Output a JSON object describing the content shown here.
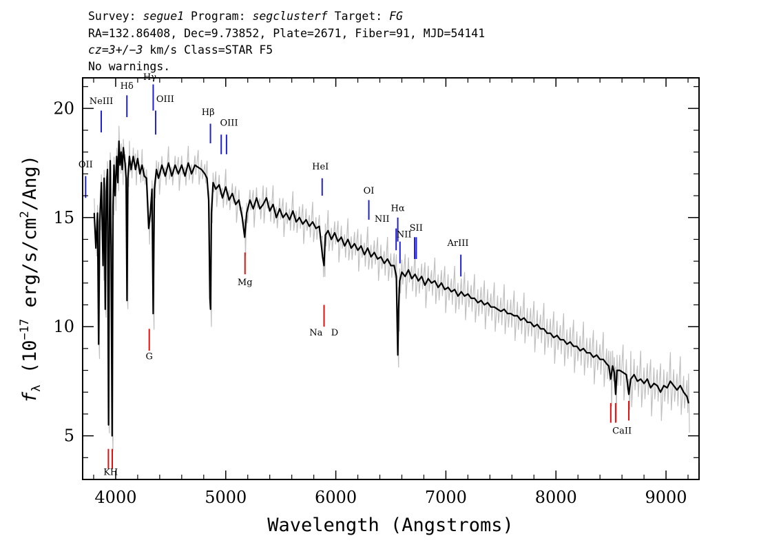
{
  "header": {
    "line1": {
      "survey_label": "Survey: ",
      "survey": "segue1",
      "program_label": " Program: ",
      "program": "segclusterf",
      "target_label": " Target: ",
      "target": "FG"
    },
    "line2": "RA=132.86408, Dec=9.73852, Plate=2671, Fiber=91, MJD=54141",
    "line3": {
      "z": "cz=3+/−3",
      "rest": " km/s Class=STAR F5"
    },
    "line4": "No warnings."
  },
  "colors": {
    "spectrum": "#000000",
    "error_band": "#c0c0c0",
    "emission": "#1f1fd6",
    "absorption": "#e01010",
    "frame": "#000000"
  },
  "chart_data": {
    "type": "line",
    "xlabel": "Wavelength (Angstroms)",
    "ylabel": "fλ (10⁻¹⁷ erg/s/cm²/Ang)",
    "ylabel_parts": {
      "f": "f",
      "sub": "λ",
      "pre": " (10",
      "exp": "−17",
      "mid": " erg/s/cm",
      "exp2": "2",
      "post": "/Ang)"
    },
    "xlim": [
      3700,
      9300
    ],
    "ylim": [
      3,
      21.4
    ],
    "x_ticks": [
      4000,
      5000,
      6000,
      7000,
      8000,
      9000
    ],
    "y_ticks": [
      5,
      10,
      15,
      20
    ],
    "x_tick_labels": [
      "4000",
      "5000",
      "6000",
      "7000",
      "8000",
      "9000"
    ],
    "y_tick_labels": [
      "5",
      "10",
      "15",
      "20"
    ],
    "grid": false,
    "series": [
      {
        "points": [
          [
            3805,
            15.2
          ],
          [
            3820,
            13.6
          ],
          [
            3835,
            15.2
          ],
          [
            3845,
            9.2
          ],
          [
            3855,
            14.8
          ],
          [
            3870,
            16.6
          ],
          [
            3885,
            12.8
          ],
          [
            3895,
            16.8
          ],
          [
            3905,
            10.8
          ],
          [
            3915,
            16.2
          ],
          [
            3925,
            17.2
          ],
          [
            3935,
            5.5
          ],
          [
            3943,
            14.5
          ],
          [
            3950,
            17.6
          ],
          [
            3958,
            14.0
          ],
          [
            3968,
            5.0
          ],
          [
            3976,
            15.5
          ],
          [
            3985,
            17.4
          ],
          [
            3995,
            16.0
          ],
          [
            4010,
            17.8
          ],
          [
            4020,
            16.6
          ],
          [
            4030,
            18.5
          ],
          [
            4040,
            17.4
          ],
          [
            4050,
            18.0
          ],
          [
            4060,
            17.2
          ],
          [
            4070,
            18.2
          ],
          [
            4085,
            17.5
          ],
          [
            4095,
            16.8
          ],
          [
            4103,
            11.2
          ],
          [
            4111,
            16.8
          ],
          [
            4125,
            17.8
          ],
          [
            4140,
            17.2
          ],
          [
            4160,
            17.8
          ],
          [
            4180,
            17.2
          ],
          [
            4200,
            17.7
          ],
          [
            4220,
            17.0
          ],
          [
            4240,
            17.4
          ],
          [
            4260,
            16.9
          ],
          [
            4280,
            16.8
          ],
          [
            4300,
            14.5
          ],
          [
            4315,
            15.2
          ],
          [
            4330,
            16.3
          ],
          [
            4341,
            10.6
          ],
          [
            4352,
            16.3
          ],
          [
            4370,
            17.2
          ],
          [
            4390,
            16.8
          ],
          [
            4420,
            17.4
          ],
          [
            4450,
            16.9
          ],
          [
            4480,
            17.5
          ],
          [
            4510,
            16.9
          ],
          [
            4540,
            17.4
          ],
          [
            4570,
            17.0
          ],
          [
            4600,
            17.4
          ],
          [
            4630,
            16.9
          ],
          [
            4660,
            17.5
          ],
          [
            4690,
            17.0
          ],
          [
            4720,
            17.4
          ],
          [
            4750,
            17.3
          ],
          [
            4780,
            17.2
          ],
          [
            4810,
            17.0
          ],
          [
            4830,
            16.8
          ],
          [
            4845,
            15.8
          ],
          [
            4856,
            11.3
          ],
          [
            4862,
            10.8
          ],
          [
            4870,
            15.2
          ],
          [
            4885,
            16.6
          ],
          [
            4910,
            16.3
          ],
          [
            4940,
            16.5
          ],
          [
            4970,
            15.9
          ],
          [
            5000,
            16.4
          ],
          [
            5030,
            15.8
          ],
          [
            5060,
            16.1
          ],
          [
            5090,
            15.6
          ],
          [
            5120,
            15.8
          ],
          [
            5150,
            15.0
          ],
          [
            5172,
            14.1
          ],
          [
            5190,
            15.2
          ],
          [
            5220,
            15.8
          ],
          [
            5250,
            15.4
          ],
          [
            5280,
            15.9
          ],
          [
            5310,
            15.4
          ],
          [
            5340,
            15.6
          ],
          [
            5370,
            15.9
          ],
          [
            5400,
            15.3
          ],
          [
            5430,
            15.6
          ],
          [
            5460,
            15.0
          ],
          [
            5490,
            15.4
          ],
          [
            5520,
            15.0
          ],
          [
            5550,
            15.2
          ],
          [
            5580,
            14.9
          ],
          [
            5610,
            15.3
          ],
          [
            5640,
            14.8
          ],
          [
            5670,
            15.0
          ],
          [
            5700,
            14.7
          ],
          [
            5730,
            14.9
          ],
          [
            5760,
            14.6
          ],
          [
            5790,
            14.8
          ],
          [
            5820,
            14.5
          ],
          [
            5850,
            14.6
          ],
          [
            5880,
            13.2
          ],
          [
            5893,
            12.8
          ],
          [
            5905,
            14.2
          ],
          [
            5930,
            14.4
          ],
          [
            5960,
            14.0
          ],
          [
            5990,
            14.3
          ],
          [
            6020,
            13.9
          ],
          [
            6050,
            14.1
          ],
          [
            6080,
            13.7
          ],
          [
            6110,
            14.0
          ],
          [
            6140,
            13.6
          ],
          [
            6170,
            13.8
          ],
          [
            6200,
            13.5
          ],
          [
            6230,
            13.7
          ],
          [
            6260,
            13.3
          ],
          [
            6290,
            13.6
          ],
          [
            6320,
            13.2
          ],
          [
            6350,
            13.4
          ],
          [
            6380,
            13.1
          ],
          [
            6410,
            13.2
          ],
          [
            6440,
            12.9
          ],
          [
            6470,
            13.1
          ],
          [
            6500,
            12.8
          ],
          [
            6530,
            12.8
          ],
          [
            6550,
            12.3
          ],
          [
            6558,
            10.0
          ],
          [
            6563,
            8.7
          ],
          [
            6570,
            10.8
          ],
          [
            6580,
            12.1
          ],
          [
            6600,
            12.5
          ],
          [
            6630,
            12.3
          ],
          [
            6660,
            12.6
          ],
          [
            6690,
            12.2
          ],
          [
            6720,
            12.4
          ],
          [
            6750,
            12.1
          ],
          [
            6780,
            12.3
          ],
          [
            6810,
            11.9
          ],
          [
            6840,
            12.2
          ],
          [
            6870,
            12.0
          ],
          [
            6900,
            12.1
          ],
          [
            6930,
            11.8
          ],
          [
            6960,
            12.0
          ],
          [
            6990,
            11.7
          ],
          [
            7020,
            11.8
          ],
          [
            7050,
            11.6
          ],
          [
            7080,
            11.7
          ],
          [
            7110,
            11.4
          ],
          [
            7140,
            11.6
          ],
          [
            7170,
            11.4
          ],
          [
            7200,
            11.5
          ],
          [
            7230,
            11.3
          ],
          [
            7260,
            11.3
          ],
          [
            7290,
            11.1
          ],
          [
            7320,
            11.2
          ],
          [
            7350,
            11.0
          ],
          [
            7380,
            11.1
          ],
          [
            7410,
            10.9
          ],
          [
            7440,
            10.9
          ],
          [
            7470,
            10.8
          ],
          [
            7500,
            10.7
          ],
          [
            7530,
            10.8
          ],
          [
            7560,
            10.6
          ],
          [
            7590,
            10.6
          ],
          [
            7620,
            10.5
          ],
          [
            7650,
            10.5
          ],
          [
            7680,
            10.3
          ],
          [
            7710,
            10.4
          ],
          [
            7740,
            10.2
          ],
          [
            7770,
            10.2
          ],
          [
            7800,
            10.0
          ],
          [
            7830,
            10.1
          ],
          [
            7860,
            9.9
          ],
          [
            7890,
            9.9
          ],
          [
            7920,
            9.7
          ],
          [
            7950,
            9.7
          ],
          [
            7980,
            9.5
          ],
          [
            8010,
            9.6
          ],
          [
            8040,
            9.4
          ],
          [
            8070,
            9.4
          ],
          [
            8100,
            9.2
          ],
          [
            8130,
            9.3
          ],
          [
            8160,
            9.1
          ],
          [
            8190,
            9.1
          ],
          [
            8220,
            8.9
          ],
          [
            8250,
            9.0
          ],
          [
            8280,
            8.8
          ],
          [
            8310,
            8.8
          ],
          [
            8340,
            8.6
          ],
          [
            8370,
            8.7
          ],
          [
            8400,
            8.5
          ],
          [
            8430,
            8.5
          ],
          [
            8460,
            8.3
          ],
          [
            8480,
            8.2
          ],
          [
            8498,
            7.6
          ],
          [
            8515,
            8.2
          ],
          [
            8530,
            7.9
          ],
          [
            8542,
            6.9
          ],
          [
            8555,
            8.0
          ],
          [
            8580,
            8.0
          ],
          [
            8610,
            7.9
          ],
          [
            8640,
            7.8
          ],
          [
            8662,
            6.9
          ],
          [
            8680,
            7.6
          ],
          [
            8710,
            7.8
          ],
          [
            8740,
            7.5
          ],
          [
            8770,
            7.6
          ],
          [
            8800,
            7.4
          ],
          [
            8830,
            7.6
          ],
          [
            8860,
            7.2
          ],
          [
            8890,
            7.4
          ],
          [
            8920,
            7.3
          ],
          [
            8950,
            7.0
          ],
          [
            8980,
            7.3
          ],
          [
            9010,
            7.2
          ],
          [
            9040,
            7.5
          ],
          [
            9070,
            7.3
          ],
          [
            9100,
            7.1
          ],
          [
            9130,
            7.3
          ],
          [
            9160,
            7.0
          ],
          [
            9190,
            6.8
          ],
          [
            9205,
            6.5
          ]
        ]
      }
    ],
    "emission_lines": [
      {
        "label": "OII",
        "x": 3727,
        "y0": 15.9,
        "y1": 16.9,
        "lx": 3727,
        "ly": 17.3
      },
      {
        "label": "NeIII",
        "x": 3869,
        "y0": 18.9,
        "y1": 19.9,
        "lx": 3869,
        "ly": 20.2
      },
      {
        "label": "Hδ",
        "x": 4102,
        "y0": 19.6,
        "y1": 20.6,
        "lx": 4102,
        "ly": 20.9
      },
      {
        "label": "Hγ",
        "x": 4341,
        "y0": 19.9,
        "y1": 21.1,
        "lx": 4310,
        "ly": 21.3
      },
      {
        "label": "OIII",
        "x": 4363,
        "y0": 18.8,
        "y1": 19.9,
        "lx": 4450,
        "ly": 20.3
      },
      {
        "label": "Hβ",
        "x": 4861,
        "y0": 18.4,
        "y1": 19.3,
        "lx": 4840,
        "ly": 19.7
      },
      {
        "label": "OIII",
        "x": 4959,
        "y0": 17.9,
        "y1": 18.8,
        "lx": 4959,
        "ly": 0
      },
      {
        "label": "OIII",
        "x": 5007,
        "y0": 17.9,
        "y1": 18.8,
        "lx": 5030,
        "ly": 19.2
      },
      {
        "label": "HeI",
        "x": 5876,
        "y0": 16.0,
        "y1": 16.8,
        "lx": 5860,
        "ly": 17.2
      },
      {
        "label": "OI",
        "x": 6300,
        "y0": 14.9,
        "y1": 15.8,
        "lx": 6300,
        "ly": 16.1
      },
      {
        "label": "NII",
        "x": 6548,
        "y0": 13.5,
        "y1": 14.5,
        "lx": 6420,
        "ly": 14.8
      },
      {
        "label": "Hα",
        "x": 6563,
        "y0": 13.9,
        "y1": 15.0,
        "lx": 6563,
        "ly": 15.3
      },
      {
        "label": "NII",
        "x": 6583,
        "y0": 12.9,
        "y1": 13.9,
        "lx": 6620,
        "ly": 14.1
      },
      {
        "label": "SII",
        "x": 6716,
        "y0": 13.1,
        "y1": 14.1,
        "lx": 6730,
        "ly": 14.4
      },
      {
        "label": "SII",
        "x": 6731,
        "y0": 13.1,
        "y1": 14.1,
        "lx": 6731,
        "ly": 0
      },
      {
        "label": "ArIII",
        "x": 7136,
        "y0": 12.3,
        "y1": 13.3,
        "lx": 7110,
        "ly": 13.7
      }
    ],
    "absorption_lines": [
      {
        "label": "K",
        "x": 3934,
        "y0": 3.5,
        "y1": 4.4,
        "lx": 3920,
        "ly": 3.2
      },
      {
        "label": "H",
        "x": 3969,
        "y0": 3.5,
        "y1": 4.4,
        "lx": 3985,
        "ly": 3.2
      },
      {
        "label": "G",
        "x": 4305,
        "y0": 8.9,
        "y1": 9.9,
        "lx": 4305,
        "ly": 8.5
      },
      {
        "label": "Mg",
        "x": 5175,
        "y0": 12.4,
        "y1": 13.4,
        "lx": 5175,
        "ly": 11.9
      },
      {
        "label": "Na",
        "x": 5893,
        "y0": 10.0,
        "y1": 11.0,
        "lx": 5820,
        "ly": 9.6
      },
      {
        "label": "D",
        "x": 5893,
        "y0": 0,
        "y1": 0,
        "lx": 5990,
        "ly": 9.6
      },
      {
        "label": "CaII",
        "x": 8498,
        "y0": 5.6,
        "y1": 6.5,
        "lx": 8600,
        "ly": 5.1
      },
      {
        "label": "CaII",
        "x": 8542,
        "y0": 5.6,
        "y1": 6.5,
        "lx": 8542,
        "ly": 0
      },
      {
        "label": "CaII",
        "x": 8662,
        "y0": 5.7,
        "y1": 6.6,
        "lx": 8662,
        "ly": 0
      }
    ]
  }
}
